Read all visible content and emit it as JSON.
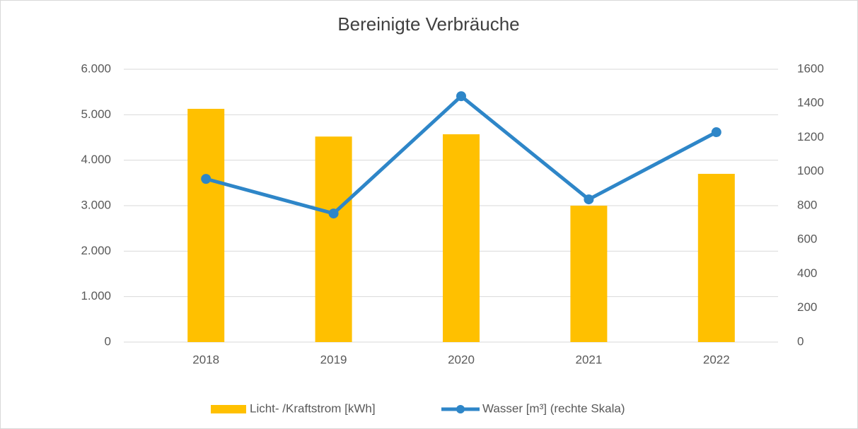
{
  "chart_data": {
    "type": "bar_line",
    "title": "Bereinigte Verbräuche",
    "categories": [
      "2018",
      "2019",
      "2020",
      "2021",
      "2022"
    ],
    "series": [
      {
        "name": "Licht- /Kraftstrom [kWh]",
        "type": "bar",
        "color": "#ffc000",
        "values": [
          5130,
          4520,
          4570,
          3000,
          3700
        ]
      },
      {
        "name": "Wasser [m³] (rechte Skala)",
        "type": "line",
        "axis": "y2",
        "color": "#2e86c8",
        "values": [
          957,
          754,
          1442,
          837,
          1231
        ]
      }
    ],
    "ylim": [
      0,
      6000
    ],
    "yticks": [
      0,
      {
        "value": 1000,
        "label": "1.000"
      },
      {
        "value": 2000,
        "label": "2.000"
      },
      {
        "value": 3000,
        "label": "3.000"
      },
      {
        "value": 4000,
        "label": "4.000"
      },
      {
        "value": 5000,
        "label": "5.000"
      },
      {
        "value": 6000,
        "label": "6.000"
      }
    ],
    "y2lim": [
      0,
      1600
    ],
    "y2ticks": [
      0,
      200,
      400,
      600,
      800,
      1000,
      1200,
      1400,
      1600
    ],
    "grid": true,
    "legend": "bottom"
  }
}
